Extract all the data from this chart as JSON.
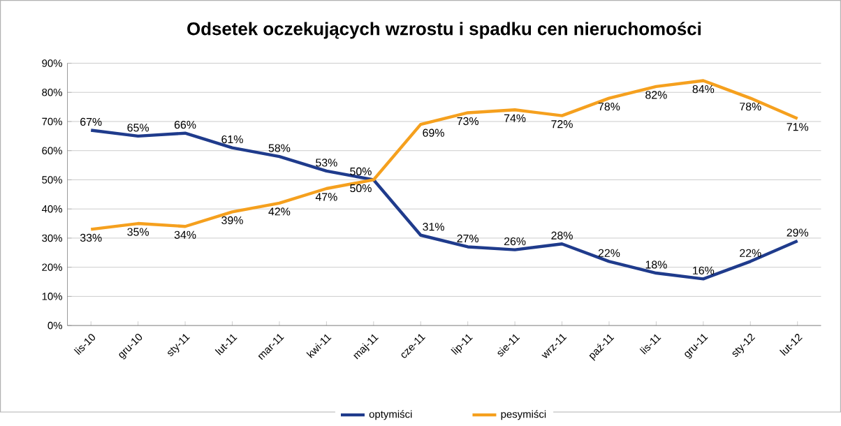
{
  "chart_data": {
    "type": "line",
    "title": "Odsetek oczekujących wzrostu i spadku cen nieruchomości",
    "categories": [
      "lis-10",
      "gru-10",
      "sty-11",
      "lut-11",
      "mar-11",
      "kwi-11",
      "maj-11",
      "cze-11",
      "lip-11",
      "sie-11",
      "wrz-11",
      "paź-11",
      "lis-11",
      "gru-11",
      "sty-12",
      "lut-12"
    ],
    "series": [
      {
        "name": "optymiści",
        "color": "#1f3b8c",
        "values": [
          67,
          65,
          66,
          61,
          58,
          53,
          50,
          31,
          27,
          26,
          28,
          22,
          18,
          16,
          22,
          29
        ],
        "value_labels": [
          "67%",
          "65%",
          "66%",
          "61%",
          "58%",
          "53%",
          "50%",
          "31%",
          "27%",
          "26%",
          "28%",
          "22%",
          "18%",
          "16%",
          "22%",
          "29%"
        ]
      },
      {
        "name": "pesymiści",
        "color": "#f5a01e",
        "values": [
          33,
          35,
          34,
          39,
          42,
          47,
          50,
          69,
          73,
          74,
          72,
          78,
          82,
          84,
          78,
          71
        ],
        "value_labels": [
          "33%",
          "35%",
          "34%",
          "39%",
          "42%",
          "47%",
          "50%",
          "69%",
          "73%",
          "74%",
          "72%",
          "78%",
          "82%",
          "84%",
          "78%",
          "71%"
        ]
      }
    ],
    "ylim": [
      0,
      90
    ],
    "yticks": [
      {
        "value": 0,
        "label": "0%"
      },
      {
        "value": 10,
        "label": "10%"
      },
      {
        "value": 20,
        "label": "20%"
      },
      {
        "value": 30,
        "label": "30%"
      },
      {
        "value": 40,
        "label": "40%"
      },
      {
        "value": 50,
        "label": "50%"
      },
      {
        "value": 60,
        "label": "60%"
      },
      {
        "value": 70,
        "label": "70%"
      },
      {
        "value": 80,
        "label": "80%"
      },
      {
        "value": 90,
        "label": "90%"
      }
    ],
    "grid": "y",
    "legend": "bottom",
    "marker": "none",
    "line_style": "solid"
  }
}
